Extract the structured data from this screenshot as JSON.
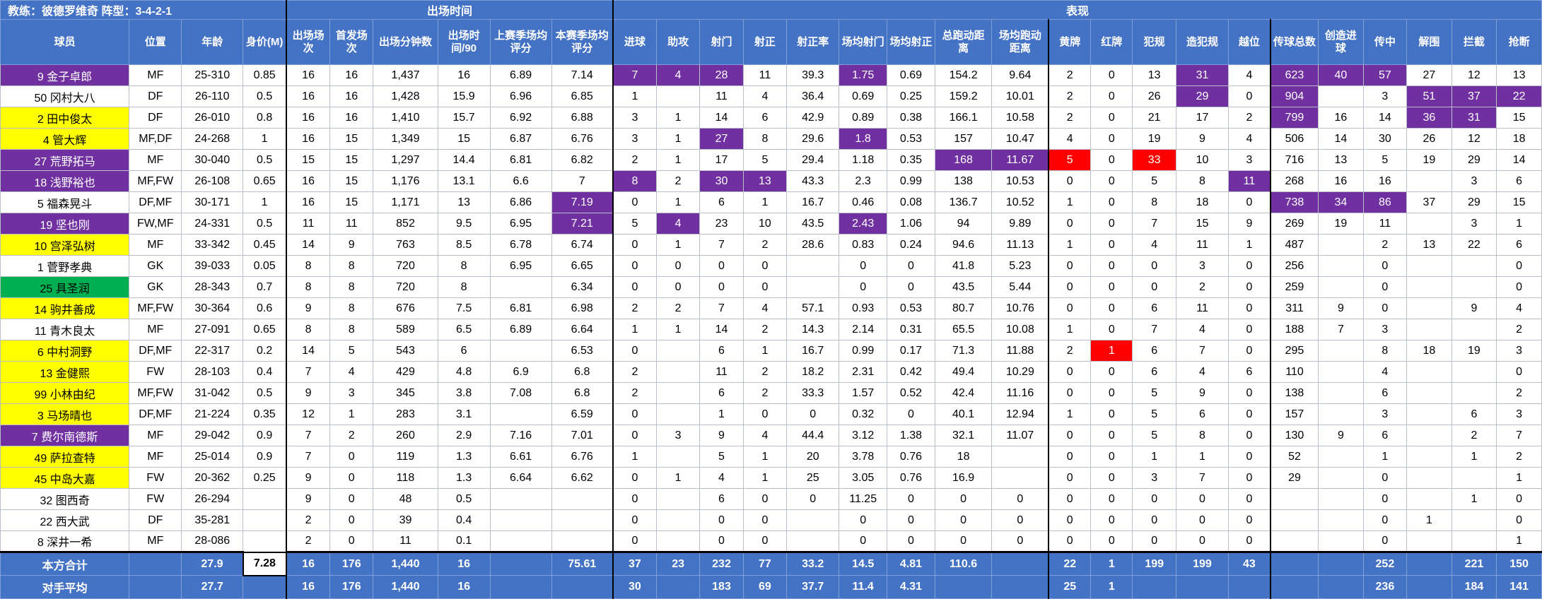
{
  "header": {
    "coach": "教练：彼德罗维奇  阵型：3-4-2-1",
    "playing_time": "出场时间",
    "performance": "表现"
  },
  "colors": {
    "header_blue": "#4472C4",
    "purple_highlight": "#7030A0",
    "red_highlight": "#FF0000",
    "yellow_name": "#FFFF00",
    "green_name": "#00B050"
  },
  "columns": [
    "球员",
    "位置",
    "年龄",
    "身价(M)",
    "出场场次",
    "首发场次",
    "出场分钟数",
    "出场时间/90",
    "上赛季场均评分",
    "本赛季场均评分",
    "进球",
    "助攻",
    "射门",
    "射正",
    "射正率",
    "场均射门",
    "场均射正",
    "总跑动距离",
    "场均跑动距离",
    "黄牌",
    "红牌",
    "犯规",
    "造犯规",
    "越位",
    "传球总数",
    "创造进球",
    "传中",
    "解围",
    "拦截",
    "抢断"
  ],
  "players": [
    {
      "name": "9 金子卓郎",
      "name_color": "purple",
      "stats": [
        "MF",
        "25-310",
        "0.85",
        "16",
        "16",
        "1,437",
        "16",
        "6.89",
        "7.14",
        "7",
        "4",
        "28",
        "11",
        "39.3",
        "1.75",
        "0.69",
        "154.2",
        "9.64",
        "2",
        "0",
        "13",
        "31",
        "4",
        "623",
        "40",
        "57",
        "27",
        "12",
        "13"
      ],
      "purple": [
        9,
        10,
        11,
        14,
        21,
        23,
        24,
        25
      ],
      "red": []
    },
    {
      "name": "50 冈村大八",
      "name_color": "none",
      "stats": [
        "DF",
        "26-110",
        "0.5",
        "16",
        "16",
        "1,428",
        "15.9",
        "6.96",
        "6.85",
        "1",
        "",
        "11",
        "4",
        "36.4",
        "0.69",
        "0.25",
        "159.2",
        "10.01",
        "2",
        "0",
        "26",
        "29",
        "0",
        "904",
        "",
        "3",
        "51",
        "37",
        "22"
      ],
      "purple": [
        21,
        23,
        26,
        27,
        28
      ],
      "red": []
    },
    {
      "name": "2 田中俊太",
      "name_color": "yellow",
      "stats": [
        "DF",
        "26-010",
        "0.8",
        "16",
        "16",
        "1,410",
        "15.7",
        "6.92",
        "6.88",
        "3",
        "1",
        "14",
        "6",
        "42.9",
        "0.89",
        "0.38",
        "166.1",
        "10.58",
        "2",
        "0",
        "21",
        "17",
        "2",
        "799",
        "16",
        "14",
        "36",
        "31",
        "15"
      ],
      "purple": [
        23,
        26,
        27
      ],
      "red": []
    },
    {
      "name": "4 管大辉",
      "name_color": "yellow",
      "stats": [
        "MF,DF",
        "24-268",
        "1",
        "16",
        "15",
        "1,349",
        "15",
        "6.87",
        "6.76",
        "3",
        "1",
        "27",
        "8",
        "29.6",
        "1.8",
        "0.53",
        "157",
        "10.47",
        "4",
        "0",
        "19",
        "9",
        "4",
        "506",
        "14",
        "30",
        "26",
        "12",
        "18"
      ],
      "purple": [
        11,
        14
      ],
      "red": []
    },
    {
      "name": "27 荒野拓马",
      "name_color": "purple",
      "stats": [
        "MF",
        "30-040",
        "0.5",
        "15",
        "15",
        "1,297",
        "14.4",
        "6.81",
        "6.82",
        "2",
        "1",
        "17",
        "5",
        "29.4",
        "1.18",
        "0.35",
        "168",
        "11.67",
        "5",
        "0",
        "33",
        "10",
        "3",
        "716",
        "13",
        "5",
        "19",
        "29",
        "14"
      ],
      "purple": [
        16,
        17
      ],
      "red": [
        18,
        20
      ]
    },
    {
      "name": "18 浅野裕也",
      "name_color": "purple",
      "stats": [
        "MF,FW",
        "26-108",
        "0.65",
        "16",
        "15",
        "1,176",
        "13.1",
        "6.6",
        "7",
        "8",
        "2",
        "30",
        "13",
        "43.3",
        "2.3",
        "0.99",
        "138",
        "10.53",
        "0",
        "0",
        "5",
        "8",
        "11",
        "268",
        "16",
        "16",
        "",
        "3",
        "6"
      ],
      "purple": [
        9,
        11,
        12,
        22
      ],
      "red": []
    },
    {
      "name": "5 福森晃斗",
      "name_color": "none",
      "stats": [
        "DF,MF",
        "30-171",
        "1",
        "16",
        "15",
        "1,171",
        "13",
        "6.86",
        "7.19",
        "0",
        "1",
        "6",
        "1",
        "16.7",
        "0.46",
        "0.08",
        "136.7",
        "10.52",
        "1",
        "0",
        "8",
        "18",
        "0",
        "738",
        "34",
        "86",
        "37",
        "29",
        "15"
      ],
      "purple": [
        8,
        23,
        24,
        25
      ],
      "red": []
    },
    {
      "name": "19 坚也刚",
      "name_color": "purple",
      "stats": [
        "FW,MF",
        "24-331",
        "0.5",
        "11",
        "11",
        "852",
        "9.5",
        "6.95",
        "7.21",
        "5",
        "4",
        "23",
        "10",
        "43.5",
        "2.43",
        "1.06",
        "94",
        "9.89",
        "0",
        "0",
        "7",
        "15",
        "9",
        "269",
        "19",
        "11",
        "",
        "3",
        "1"
      ],
      "purple": [
        8,
        10,
        14
      ],
      "red": []
    },
    {
      "name": "10 宫泽弘树",
      "name_color": "yellow",
      "stats": [
        "MF",
        "33-342",
        "0.45",
        "14",
        "9",
        "763",
        "8.5",
        "6.78",
        "6.74",
        "0",
        "1",
        "7",
        "2",
        "28.6",
        "0.83",
        "0.24",
        "94.6",
        "11.13",
        "1",
        "0",
        "4",
        "11",
        "1",
        "487",
        "",
        "2",
        "13",
        "22",
        "6"
      ],
      "purple": [],
      "red": []
    },
    {
      "name": "1 菅野孝典",
      "name_color": "none",
      "stats": [
        "GK",
        "39-033",
        "0.05",
        "8",
        "8",
        "720",
        "8",
        "6.95",
        "6.65",
        "0",
        "0",
        "0",
        "0",
        "",
        "0",
        "0",
        "41.8",
        "5.23",
        "0",
        "0",
        "0",
        "3",
        "0",
        "256",
        "",
        "0",
        "",
        "",
        "0"
      ],
      "purple": [],
      "red": []
    },
    {
      "name": "25 具圣润",
      "name_color": "green",
      "stats": [
        "GK",
        "28-343",
        "0.7",
        "8",
        "8",
        "720",
        "8",
        "",
        "6.34",
        "0",
        "0",
        "0",
        "0",
        "",
        "0",
        "0",
        "43.5",
        "5.44",
        "0",
        "0",
        "0",
        "2",
        "0",
        "259",
        "",
        "0",
        "",
        "",
        "0"
      ],
      "purple": [],
      "red": []
    },
    {
      "name": "14 驹井善成",
      "name_color": "yellow",
      "stats": [
        "MF,FW",
        "30-364",
        "0.6",
        "9",
        "8",
        "676",
        "7.5",
        "6.81",
        "6.98",
        "2",
        "2",
        "7",
        "4",
        "57.1",
        "0.93",
        "0.53",
        "80.7",
        "10.76",
        "0",
        "0",
        "6",
        "11",
        "0",
        "311",
        "9",
        "0",
        "",
        "9",
        "4"
      ],
      "purple": [],
      "red": []
    },
    {
      "name": "11 青木良太",
      "name_color": "none",
      "stats": [
        "MF",
        "27-091",
        "0.65",
        "8",
        "8",
        "589",
        "6.5",
        "6.89",
        "6.64",
        "1",
        "1",
        "14",
        "2",
        "14.3",
        "2.14",
        "0.31",
        "65.5",
        "10.08",
        "1",
        "0",
        "7",
        "4",
        "0",
        "188",
        "7",
        "3",
        "",
        "",
        "2"
      ],
      "purple": [],
      "red": []
    },
    {
      "name": "6 中村洞野",
      "name_color": "yellow",
      "stats": [
        "DF,MF",
        "22-317",
        "0.2",
        "14",
        "5",
        "543",
        "6",
        "",
        "6.53",
        "0",
        "",
        "6",
        "1",
        "16.7",
        "0.99",
        "0.17",
        "71.3",
        "11.88",
        "2",
        "1",
        "6",
        "7",
        "0",
        "295",
        "",
        "8",
        "18",
        "19",
        "3"
      ],
      "purple": [],
      "red": [
        19
      ]
    },
    {
      "name": "13 金健熙",
      "name_color": "yellow",
      "stats": [
        "FW",
        "28-103",
        "0.4",
        "7",
        "4",
        "429",
        "4.8",
        "6.9",
        "6.8",
        "2",
        "",
        "11",
        "2",
        "18.2",
        "2.31",
        "0.42",
        "49.4",
        "10.29",
        "0",
        "0",
        "6",
        "4",
        "6",
        "110",
        "",
        "4",
        "",
        "",
        "0"
      ],
      "purple": [],
      "red": []
    },
    {
      "name": "99 小林由纪",
      "name_color": "yellow",
      "stats": [
        "MF,FW",
        "31-042",
        "0.5",
        "9",
        "3",
        "345",
        "3.8",
        "7.08",
        "6.8",
        "2",
        "",
        "6",
        "2",
        "33.3",
        "1.57",
        "0.52",
        "42.4",
        "11.16",
        "0",
        "0",
        "5",
        "9",
        "0",
        "138",
        "",
        "6",
        "",
        "",
        "2"
      ],
      "purple": [],
      "red": []
    },
    {
      "name": "3 马场晴也",
      "name_color": "yellow",
      "stats": [
        "DF,MF",
        "21-224",
        "0.35",
        "12",
        "1",
        "283",
        "3.1",
        "",
        "6.59",
        "0",
        "",
        "1",
        "0",
        "0",
        "0.32",
        "0",
        "40.1",
        "12.94",
        "1",
        "0",
        "5",
        "6",
        "0",
        "157",
        "",
        "3",
        "",
        "6",
        "3"
      ],
      "purple": [],
      "red": []
    },
    {
      "name": "7 费尔南德斯",
      "name_color": "purple",
      "stats": [
        "MF",
        "29-042",
        "0.9",
        "7",
        "2",
        "260",
        "2.9",
        "7.16",
        "7.01",
        "0",
        "3",
        "9",
        "4",
        "44.4",
        "3.12",
        "1.38",
        "32.1",
        "11.07",
        "0",
        "0",
        "5",
        "8",
        "0",
        "130",
        "9",
        "6",
        "",
        "2",
        "7"
      ],
      "purple": [],
      "red": []
    },
    {
      "name": "49 萨拉查特",
      "name_color": "yellow",
      "stats": [
        "MF",
        "25-014",
        "0.9",
        "7",
        "0",
        "119",
        "1.3",
        "6.61",
        "6.76",
        "1",
        "",
        "5",
        "1",
        "20",
        "3.78",
        "0.76",
        "18",
        "",
        "0",
        "0",
        "1",
        "1",
        "0",
        "52",
        "",
        "1",
        "",
        "1",
        "2"
      ],
      "purple": [],
      "red": []
    },
    {
      "name": "45 中岛大嘉",
      "name_color": "yellow",
      "stats": [
        "FW",
        "20-362",
        "0.25",
        "9",
        "0",
        "118",
        "1.3",
        "6.64",
        "6.62",
        "0",
        "1",
        "4",
        "1",
        "25",
        "3.05",
        "0.76",
        "16.9",
        "",
        "0",
        "0",
        "3",
        "7",
        "0",
        "29",
        "",
        "0",
        "",
        "",
        "1"
      ],
      "purple": [],
      "red": []
    },
    {
      "name": "32 图西奇",
      "name_color": "none",
      "stats": [
        "FW",
        "26-294",
        "",
        "9",
        "0",
        "48",
        "0.5",
        "",
        "",
        "0",
        "",
        "6",
        "0",
        "0",
        "11.25",
        "0",
        "0",
        "0",
        "0",
        "0",
        "0",
        "0",
        "0",
        "",
        "",
        "0",
        "",
        "1",
        "0"
      ],
      "purple": [],
      "red": []
    },
    {
      "name": "22 西大武",
      "name_color": "none",
      "stats": [
        "DF",
        "35-281",
        "",
        "2",
        "0",
        "39",
        "0.4",
        "",
        "",
        "0",
        "",
        "0",
        "0",
        "",
        "0",
        "0",
        "0",
        "0",
        "0",
        "0",
        "0",
        "0",
        "0",
        "",
        "",
        "0",
        "1",
        "",
        "0"
      ],
      "purple": [],
      "red": []
    },
    {
      "name": "8 深井一希",
      "name_color": "none",
      "stats": [
        "MF",
        "28-086",
        "",
        "2",
        "0",
        "11",
        "0.1",
        "",
        "",
        "0",
        "",
        "0",
        "0",
        "",
        "0",
        "0",
        "0",
        "0",
        "0",
        "0",
        "0",
        "0",
        "0",
        "",
        "",
        "0",
        "",
        "",
        "1"
      ],
      "purple": [],
      "red": []
    }
  ],
  "totals": [
    {
      "label": "本方合计",
      "stats": [
        "",
        "27.9",
        "7.28",
        "16",
        "176",
        "1,440",
        "16",
        "",
        "75.61",
        "37",
        "23",
        "232",
        "77",
        "33.2",
        "14.5",
        "4.81",
        "110.6",
        "",
        "22",
        "1",
        "199",
        "199",
        "43",
        "",
        "",
        "252",
        "",
        "221",
        "150"
      ],
      "boxed": [
        2
      ]
    },
    {
      "label": "对手平均",
      "stats": [
        "",
        "27.7",
        "",
        "16",
        "176",
        "1,440",
        "16",
        "",
        "",
        "30",
        "",
        "183",
        "69",
        "37.7",
        "11.4",
        "4.31",
        "",
        "",
        "25",
        "1",
        "",
        "",
        "",
        "",
        "",
        "236",
        "",
        "184",
        "141"
      ],
      "boxed": []
    }
  ]
}
